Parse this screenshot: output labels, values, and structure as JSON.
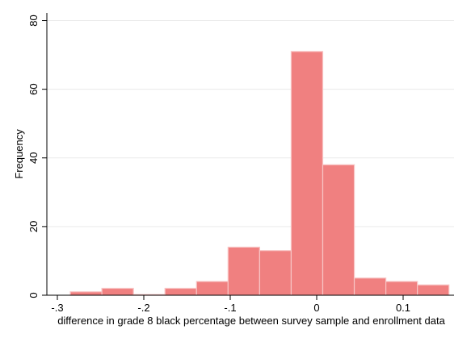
{
  "chart_data": {
    "type": "bar",
    "subtype": "histogram",
    "xlabel": "difference in grade 8 black percentage between survey sample and enrollment data",
    "ylabel": "Frequency",
    "xlim": [
      -0.305,
      0.155
    ],
    "ylim": [
      0,
      82
    ],
    "x_ticks": [
      {
        "value": -0.3,
        "label": "-.3"
      },
      {
        "value": -0.2,
        "label": "-.2"
      },
      {
        "value": -0.1,
        "label": "-.1"
      },
      {
        "value": 0,
        "label": "0"
      },
      {
        "value": 0.1,
        "label": "0.1"
      }
    ],
    "y_ticks": [
      {
        "value": 0,
        "label": "0"
      },
      {
        "value": 20,
        "label": "20"
      },
      {
        "value": 40,
        "label": "40"
      },
      {
        "value": 60,
        "label": "60"
      },
      {
        "value": 80,
        "label": "80"
      }
    ],
    "grid": "horizontal",
    "bar_color": "#f08080",
    "bins": [
      {
        "start": -0.285,
        "end": -0.2485,
        "value": 1
      },
      {
        "start": -0.2485,
        "end": -0.212,
        "value": 2
      },
      {
        "start": -0.212,
        "end": -0.1755,
        "value": 0
      },
      {
        "start": -0.1755,
        "end": -0.139,
        "value": 2
      },
      {
        "start": -0.139,
        "end": -0.1025,
        "value": 4
      },
      {
        "start": -0.1025,
        "end": -0.066,
        "value": 14
      },
      {
        "start": -0.066,
        "end": -0.0295,
        "value": 13
      },
      {
        "start": -0.0295,
        "end": 0.007,
        "value": 71
      },
      {
        "start": 0.007,
        "end": 0.0435,
        "value": 38
      },
      {
        "start": 0.0435,
        "end": 0.08,
        "value": 5
      },
      {
        "start": 0.08,
        "end": 0.1165,
        "value": 4
      },
      {
        "start": 0.1165,
        "end": 0.153,
        "value": 3
      }
    ]
  }
}
